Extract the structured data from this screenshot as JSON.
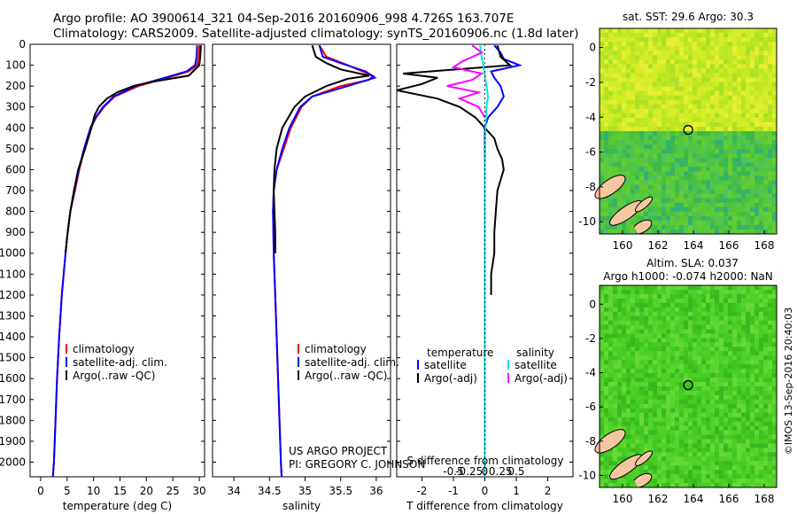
{
  "header": {
    "line1": "Argo profile: AO 3900614_321 04-Sep-2016 20160906_998 4.726S 163.707E",
    "line2": "Climatology: CARS2009. Satellite-adjusted climatology: synTS_20160906.nc (1.8d later)"
  },
  "colors": {
    "climatology": "#ff0000",
    "satellite": "#0000ff",
    "argo": "#000000",
    "sat_salinity": "#00e5ee",
    "argo_salinity_diff": "#ff00ff"
  },
  "chart_data": [
    {
      "id": "temperature",
      "type": "line",
      "xlabel": "temperature (deg C)",
      "xlim": [
        -2,
        31
      ],
      "xticks": [
        0,
        5,
        10,
        15,
        20,
        25,
        30
      ],
      "ylim": [
        2070,
        0
      ],
      "yticks": [
        0,
        100,
        200,
        300,
        400,
        500,
        600,
        700,
        800,
        900,
        1000,
        1100,
        1200,
        1300,
        1400,
        1500,
        1600,
        1700,
        1800,
        1900,
        2000
      ],
      "series": [
        {
          "name": "climatology",
          "color": "#ff0000",
          "depth": [
            5,
            60,
            100,
            130,
            160,
            200,
            250,
            300,
            350,
            400,
            500,
            600,
            700,
            800,
            900,
            1000,
            1200,
            1400,
            1600,
            1800,
            2000,
            2070
          ],
          "values": [
            30,
            29.9,
            29.6,
            28,
            24,
            18.5,
            14,
            12,
            10.5,
            9.5,
            8.3,
            7.3,
            6.5,
            5.6,
            5.1,
            4.7,
            4.0,
            3.5,
            3.1,
            2.8,
            2.5,
            2.3
          ]
        },
        {
          "name": "satellite-adj. clim.",
          "color": "#0000ff",
          "depth": [
            5,
            60,
            100,
            130,
            160,
            200,
            250,
            300,
            350,
            400,
            500,
            600,
            700,
            800,
            900,
            1000,
            1200,
            1400,
            1600,
            1800,
            2000,
            2070
          ],
          "values": [
            29.6,
            29.5,
            29.2,
            27.6,
            23.5,
            18,
            13.8,
            11.8,
            10.4,
            9.4,
            8.2,
            7.2,
            6.4,
            5.6,
            5.1,
            4.7,
            4.0,
            3.5,
            3.1,
            2.8,
            2.5,
            2.3
          ]
        },
        {
          "name": "Argo(..raw -QC)",
          "color": "#000000",
          "depth": [
            5,
            60,
            100,
            150,
            180,
            200,
            230,
            260,
            300,
            340,
            400,
            500,
            600,
            700,
            800,
            900,
            1000
          ],
          "values": [
            30.3,
            30.2,
            30,
            28,
            21,
            17.5,
            14.5,
            12.5,
            11,
            10.2,
            9.6,
            8.4,
            7.1,
            6.3,
            5.6,
            5.1,
            4.7
          ]
        }
      ],
      "legend": [
        "climatology",
        "satellite-adj. clim.",
        "Argo(..raw -QC)"
      ]
    },
    {
      "id": "salinity",
      "type": "line",
      "xlabel": "salinity",
      "xlim": [
        33.7,
        36.2
      ],
      "xticks": [
        34,
        34.5,
        35,
        35.5,
        36
      ],
      "series": [
        {
          "name": "climatology",
          "color": "#ff0000",
          "depth": [
            5,
            60,
            100,
            150,
            170,
            200,
            250,
            300,
            400,
            500,
            600,
            700,
            800,
            1000,
            1200,
            1500,
            2000,
            2070
          ],
          "values": [
            35.2,
            35.3,
            35.6,
            35.95,
            35.9,
            35.5,
            35.1,
            34.95,
            34.8,
            34.7,
            34.6,
            34.56,
            34.55,
            34.56,
            34.58,
            34.61,
            34.66,
            34.67
          ]
        },
        {
          "name": "satellite-adj. clim.",
          "color": "#0000ff",
          "depth": [
            5,
            60,
            90,
            130,
            160,
            200,
            250,
            300,
            400,
            500,
            600,
            700,
            800,
            1000,
            1200,
            1500,
            2000,
            2070
          ],
          "values": [
            35.2,
            35.25,
            35.5,
            35.85,
            35.98,
            35.6,
            35.1,
            34.93,
            34.78,
            34.68,
            34.6,
            34.56,
            34.55,
            34.56,
            34.58,
            34.61,
            34.66,
            34.67
          ]
        },
        {
          "name": "Argo(..raw -QC)",
          "color": "#000000",
          "depth": [
            5,
            60,
            90,
            120,
            150,
            165,
            200,
            250,
            300,
            400,
            500,
            600,
            700,
            800,
            900,
            1000
          ],
          "values": [
            35.1,
            35.15,
            35.3,
            35.5,
            35.9,
            35.6,
            35.3,
            35.0,
            34.85,
            34.68,
            34.6,
            34.57,
            34.56,
            34.57,
            34.58,
            34.58
          ]
        }
      ],
      "legend": [
        "climatology",
        "satellite-adj. clim.",
        "Argo(..raw -QC)"
      ],
      "annotation": [
        "US ARGO PROJECT",
        "PI: GREGORY C. JOHNSON"
      ]
    },
    {
      "id": "differences",
      "type": "line",
      "xlabel_bottom": "T difference from climatology",
      "xlabel_top": "S difference from climatology",
      "xlim": [
        -2.8,
        2.8
      ],
      "xticks": [
        -2,
        -1,
        0,
        1,
        2
      ],
      "xticks_top": [
        -0.5,
        -0.25,
        0,
        0.25,
        0.5
      ],
      "series": [
        {
          "name": "temperature satellite",
          "color": "#0000ff",
          "depth": [
            5,
            40,
            70,
            100,
            130,
            160,
            200,
            250,
            300,
            350,
            400,
            500,
            1000,
            2000,
            2070
          ],
          "values": [
            0.3,
            0.5,
            0.6,
            1.1,
            0.2,
            0.3,
            0.5,
            0.6,
            0.4,
            0.1,
            0,
            0,
            0,
            0,
            0
          ]
        },
        {
          "name": "temperature Argo(-adj)",
          "color": "#000000",
          "depth": [
            5,
            60,
            100,
            140,
            160,
            190,
            220,
            260,
            300,
            350,
            400,
            450,
            500,
            550,
            600,
            700,
            800,
            900,
            1000,
            1100,
            1200
          ],
          "values": [
            0.4,
            0.5,
            0.8,
            -2.6,
            -1.5,
            -2.0,
            -2.8,
            -1.5,
            -0.8,
            -0.3,
            0,
            0.3,
            0.4,
            0.55,
            0.6,
            0.4,
            0.35,
            0.3,
            0.3,
            0.2,
            0.2
          ]
        },
        {
          "name": "salinity satellite",
          "color": "#00e5ee",
          "depth": [
            5,
            60,
            100,
            150,
            200,
            250,
            300,
            400,
            600,
            1000,
            1500,
            2070
          ],
          "values": [
            -0.15,
            -0.1,
            -0.05,
            0.0,
            0.05,
            0.1,
            0.05,
            0.02,
            0.0,
            0.0,
            0.0,
            0.0
          ]
        },
        {
          "name": "salinity Argo(-adj)",
          "color": "#ff00ff",
          "depth": [
            5,
            40,
            80,
            110,
            140,
            170,
            200,
            230,
            260,
            300,
            350
          ],
          "values": [
            -0.4,
            -0.1,
            -0.7,
            -1.0,
            -0.1,
            -0.4,
            -1.2,
            -0.2,
            -0.8,
            -0.2,
            0
          ]
        }
      ],
      "legend": {
        "temperature_header": "temperature",
        "salinity_header": "salinity",
        "items": [
          "satellite",
          "Argo(-adj)",
          "satellite",
          "Argo(-adj)"
        ]
      }
    },
    {
      "id": "sst_map",
      "type": "heatmap",
      "title": "sat. SST: 29.6 Argo: 30.3",
      "xlim": [
        158.7,
        168.7
      ],
      "ylim": [
        -10.7,
        1.1
      ],
      "xticks": [
        160,
        162,
        164,
        166,
        168
      ],
      "yticks": [
        0,
        -2,
        -4,
        -6,
        -8,
        -10
      ],
      "marker": {
        "lon": 163.707,
        "lat": -4.726
      }
    },
    {
      "id": "sla_map",
      "type": "heatmap",
      "title_line1": "Altim. SLA: 0.037",
      "title_line2": "Argo h1000: -0.074 h2000: NaN",
      "xlim": [
        158.7,
        168.7
      ],
      "ylim": [
        -10.7,
        1.1
      ],
      "xticks": [
        160,
        162,
        164,
        166,
        168
      ],
      "yticks": [
        0,
        -2,
        -4,
        -6,
        -8,
        -10
      ],
      "marker": {
        "lon": 163.707,
        "lat": -4.726
      }
    }
  ],
  "credit": "©IMOS 13-Sep-2016 20:40:03"
}
